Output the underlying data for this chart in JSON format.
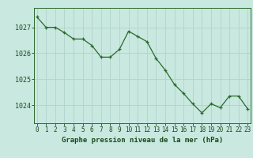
{
  "x": [
    0,
    1,
    2,
    3,
    4,
    5,
    6,
    7,
    8,
    9,
    10,
    11,
    12,
    13,
    14,
    15,
    16,
    17,
    18,
    19,
    20,
    21,
    22,
    23
  ],
  "y": [
    1027.4,
    1027.0,
    1027.0,
    1026.8,
    1026.55,
    1026.55,
    1026.3,
    1025.85,
    1025.85,
    1026.15,
    1026.85,
    1026.65,
    1026.45,
    1025.8,
    1025.35,
    1024.8,
    1024.45,
    1024.05,
    1023.7,
    1024.05,
    1023.9,
    1024.35,
    1024.35,
    1023.85
  ],
  "line_color": "#2d6a2d",
  "marker": "+",
  "bg_color": "#c8e8e0",
  "grid_color_major": "#b0d4cc",
  "grid_color_minor": "#d8ecec",
  "xlabel": "Graphe pression niveau de la mer (hPa)",
  "xlabel_color": "#1a4a1a",
  "tick_color": "#1a4a1a",
  "axis_color": "#2d6a2d",
  "ylim_min": 1023.3,
  "ylim_max": 1027.75,
  "yticks": [
    1024,
    1025,
    1026,
    1027
  ],
  "xticks": [
    0,
    1,
    2,
    3,
    4,
    5,
    6,
    7,
    8,
    9,
    10,
    11,
    12,
    13,
    14,
    15,
    16,
    17,
    18,
    19,
    20,
    21,
    22,
    23
  ]
}
